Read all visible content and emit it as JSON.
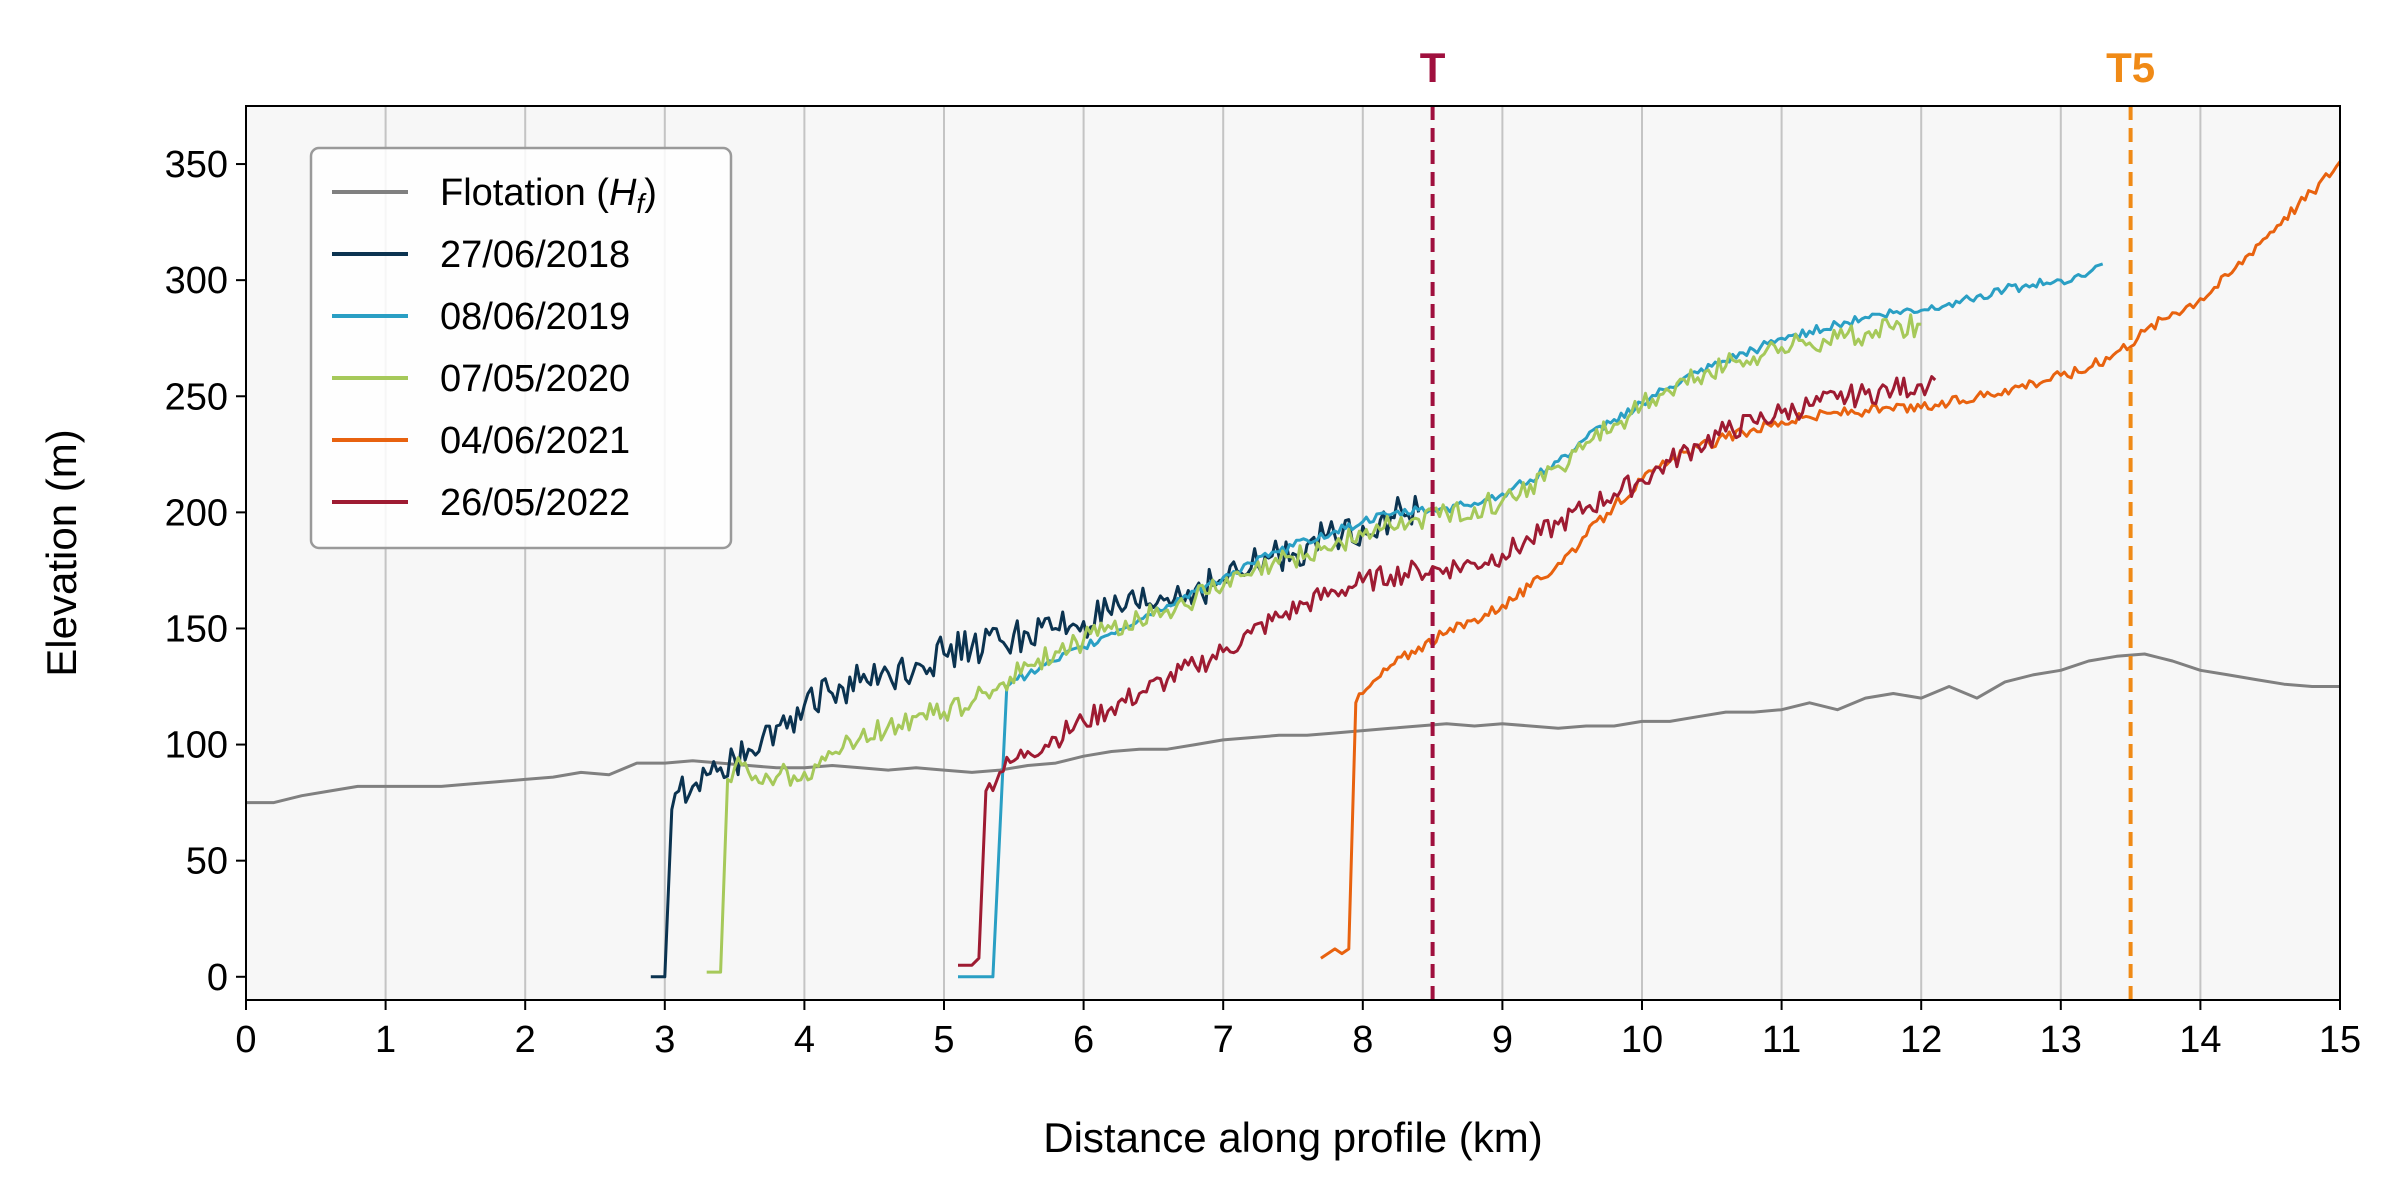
{
  "chart_data": {
    "type": "line",
    "xlabel": "Distance along profile (km)",
    "ylabel": "Elevation (m)",
    "xlim": [
      0,
      15
    ],
    "ylim": [
      -10,
      375
    ],
    "xticks": [
      0,
      1,
      2,
      3,
      4,
      5,
      6,
      7,
      8,
      9,
      10,
      11,
      12,
      13,
      14,
      15
    ],
    "yticks": [
      0,
      50,
      100,
      150,
      200,
      250,
      300,
      350
    ],
    "grid": "vertical",
    "legend_position": "top-left",
    "markers": [
      {
        "label": "T",
        "x": 8.5,
        "color": "#a0103e"
      },
      {
        "label": "T5",
        "x": 13.5,
        "color": "#f08a16"
      }
    ],
    "series": [
      {
        "name": "Flotation (H_f)",
        "legend_main": "Flotation (",
        "legend_sym": "H",
        "legend_sub": "f",
        "legend_close": ")",
        "color": "#808080",
        "width": 3,
        "x": [
          0,
          0.2,
          0.4,
          0.6,
          0.8,
          1.0,
          1.2,
          1.4,
          1.6,
          1.8,
          2.0,
          2.2,
          2.4,
          2.6,
          2.8,
          3.0,
          3.2,
          3.4,
          3.6,
          3.8,
          4.0,
          4.2,
          4.4,
          4.6,
          4.8,
          5.0,
          5.2,
          5.4,
          5.6,
          5.8,
          6.0,
          6.2,
          6.4,
          6.6,
          6.8,
          7.0,
          7.2,
          7.4,
          7.6,
          7.8,
          8.0,
          8.2,
          8.4,
          8.6,
          8.8,
          9.0,
          9.2,
          9.4,
          9.6,
          9.8,
          10.0,
          10.2,
          10.4,
          10.6,
          10.8,
          11.0,
          11.2,
          11.4,
          11.6,
          11.8,
          12.0,
          12.2,
          12.4,
          12.6,
          12.8,
          13.0,
          13.2,
          13.4,
          13.6,
          13.8,
          14.0,
          14.2,
          14.4,
          14.6,
          14.8,
          15.0
        ],
        "y": [
          75,
          75,
          78,
          80,
          82,
          82,
          82,
          82,
          83,
          84,
          85,
          86,
          88,
          87,
          92,
          92,
          93,
          92,
          91,
          90,
          90,
          91,
          90,
          89,
          90,
          89,
          88,
          89,
          91,
          92,
          95,
          97,
          98,
          98,
          100,
          102,
          103,
          104,
          104,
          105,
          106,
          107,
          108,
          109,
          108,
          109,
          108,
          107,
          108,
          108,
          110,
          110,
          112,
          114,
          114,
          115,
          118,
          115,
          120,
          122,
          120,
          125,
          120,
          127,
          130,
          132,
          136,
          138,
          139,
          136,
          132,
          130,
          128,
          126,
          125,
          125
        ]
      },
      {
        "name": "27/06/2018",
        "color": "#0b3350",
        "width": 3,
        "x": [
          2.9,
          3.0,
          3.05,
          3.1,
          3.2,
          3.3,
          3.4,
          3.5,
          3.6,
          3.7,
          3.8,
          3.9,
          4.0,
          4.2,
          4.4,
          4.6,
          4.8,
          5.0,
          5.2,
          5.4,
          5.6,
          5.8,
          6.0,
          6.2,
          6.4,
          6.6,
          6.8,
          7.0,
          7.2,
          7.4,
          7.6,
          7.8,
          8.0,
          8.2,
          8.4
        ],
        "y": [
          0,
          0,
          72,
          80,
          82,
          87,
          90,
          94,
          98,
          103,
          108,
          112,
          117,
          122,
          127,
          131,
          135,
          139,
          142,
          145,
          148,
          150,
          153,
          156,
          159,
          163,
          167,
          171,
          176,
          181,
          186,
          190,
          194,
          198,
          200
        ],
        "noise": 8
      },
      {
        "name": "08/06/2019",
        "color": "#2a9fc4",
        "width": 3,
        "x": [
          5.1,
          5.2,
          5.3,
          5.35,
          5.45,
          5.5,
          5.6,
          5.8,
          6.0,
          6.2,
          6.4,
          6.6,
          6.8,
          7.0,
          7.2,
          7.4,
          7.6,
          7.8,
          8.0,
          8.2,
          8.4,
          8.6,
          8.8,
          9.0,
          9.2,
          9.4,
          9.6,
          9.8,
          10.0,
          10.2,
          10.4,
          10.6,
          10.8,
          11.0,
          11.2,
          11.4,
          11.6,
          11.8,
          12.0,
          12.2,
          12.4,
          12.6,
          12.8,
          13.0,
          13.2,
          13.3
        ],
        "y": [
          0,
          0,
          0,
          0,
          125,
          128,
          130,
          136,
          142,
          148,
          154,
          160,
          166,
          172,
          178,
          183,
          188,
          192,
          196,
          199,
          201,
          202,
          204,
          208,
          214,
          222,
          232,
          240,
          247,
          254,
          260,
          265,
          270,
          275,
          278,
          281,
          284,
          286,
          287,
          290,
          293,
          296,
          298,
          300,
          303,
          307
        ],
        "noise": 2
      },
      {
        "name": "07/05/2020",
        "color": "#a6c95a",
        "width": 3,
        "x": [
          3.3,
          3.4,
          3.45,
          3.5,
          3.6,
          3.8,
          4.0,
          4.2,
          4.4,
          4.6,
          4.8,
          5.0,
          5.2,
          5.4,
          5.6,
          5.8,
          6.0,
          6.2,
          6.4,
          6.6,
          6.8,
          7.0,
          7.2,
          7.4,
          7.6,
          7.8,
          8.0,
          8.2,
          8.4,
          8.6,
          8.8,
          9.0,
          9.2,
          9.4,
          9.6,
          9.8,
          10.0,
          10.2,
          10.4,
          10.6,
          10.8,
          11.0,
          11.2,
          11.4,
          11.6,
          11.8,
          12.0
        ],
        "y": [
          2,
          2,
          85,
          90,
          88,
          86,
          88,
          96,
          103,
          108,
          112,
          114,
          118,
          126,
          134,
          140,
          145,
          150,
          154,
          158,
          163,
          168,
          173,
          178,
          182,
          186,
          190,
          194,
          197,
          200,
          202,
          205,
          212,
          220,
          230,
          238,
          246,
          252,
          258,
          263,
          267,
          271,
          273,
          275,
          277,
          279,
          281
        ],
        "noise": 5
      },
      {
        "name": "04/06/2021",
        "color": "#e8620f",
        "width": 3,
        "x": [
          7.7,
          7.8,
          7.85,
          7.9,
          7.95,
          8.0,
          8.2,
          8.4,
          8.6,
          8.8,
          9.0,
          9.2,
          9.4,
          9.6,
          9.8,
          10.0,
          10.2,
          10.4,
          10.6,
          10.8,
          11.0,
          11.2,
          11.4,
          11.6,
          11.8,
          12.0,
          12.2,
          12.4,
          12.6,
          12.8,
          13.0,
          13.2,
          13.4,
          13.6,
          13.8,
          14.0,
          14.2,
          14.4,
          14.6,
          14.8,
          15.0
        ],
        "y": [
          8,
          12,
          10,
          12,
          118,
          122,
          134,
          142,
          148,
          154,
          160,
          168,
          178,
          190,
          203,
          214,
          222,
          228,
          232,
          236,
          239,
          241,
          243,
          244,
          244,
          245,
          247,
          250,
          253,
          256,
          259,
          262,
          269,
          278,
          286,
          292,
          302,
          315,
          327,
          338,
          351
        ],
        "noise": 2.5
      },
      {
        "name": "26/05/2022",
        "color": "#9e1b32",
        "width": 3,
        "x": [
          5.1,
          5.2,
          5.25,
          5.3,
          5.4,
          5.5,
          5.6,
          5.8,
          6.0,
          6.2,
          6.4,
          6.6,
          6.8,
          7.0,
          7.2,
          7.4,
          7.6,
          7.8,
          8.0,
          8.2,
          8.4,
          8.6,
          8.8,
          9.0,
          9.2,
          9.4,
          9.6,
          9.8,
          10.0,
          10.2,
          10.4,
          10.6,
          10.8,
          11.0,
          11.2,
          11.4,
          11.6,
          11.8,
          12.0,
          12.1
        ],
        "y": [
          5,
          5,
          8,
          80,
          88,
          93,
          97,
          103,
          110,
          116,
          122,
          128,
          134,
          140,
          148,
          155,
          161,
          166,
          170,
          173,
          175,
          176,
          178,
          182,
          188,
          195,
          202,
          208,
          214,
          222,
          229,
          235,
          239,
          243,
          246,
          249,
          251,
          253,
          255,
          257
        ],
        "noise": 5
      }
    ]
  }
}
